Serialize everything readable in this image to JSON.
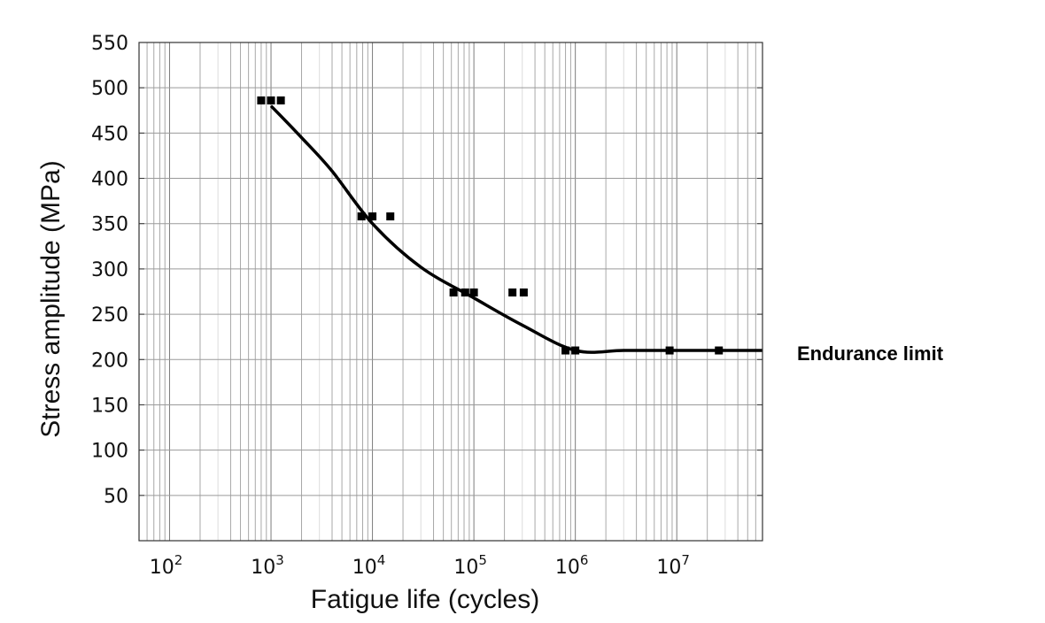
{
  "chart_data": {
    "type": "scatter",
    "title": "",
    "xlabel": "Fatigue life (cycles)",
    "ylabel": "Stress amplitude (MPa)",
    "x_scale": "log",
    "xlim": [
      50,
      70000000
    ],
    "ylim": [
      0,
      550
    ],
    "grid": true,
    "x_ticks": [
      {
        "value": 100,
        "base": "10",
        "exp": "2"
      },
      {
        "value": 1000,
        "base": "10",
        "exp": "3"
      },
      {
        "value": 10000,
        "base": "10",
        "exp": "4"
      },
      {
        "value": 100000,
        "base": "10",
        "exp": "5"
      },
      {
        "value": 1000000,
        "base": "10",
        "exp": "6"
      },
      {
        "value": 10000000,
        "base": "10",
        "exp": "7"
      }
    ],
    "y_ticks": [
      50,
      100,
      150,
      200,
      250,
      300,
      350,
      400,
      450,
      500,
      550
    ],
    "series": [
      {
        "type": "scatter",
        "color": "#000000",
        "points": [
          {
            "x": 800,
            "y": 486
          },
          {
            "x": 1000,
            "y": 486
          },
          {
            "x": 1250,
            "y": 486
          },
          {
            "x": 7800,
            "y": 358
          },
          {
            "x": 10000,
            "y": 358
          },
          {
            "x": 15000,
            "y": 358
          },
          {
            "x": 63000,
            "y": 274
          },
          {
            "x": 82000,
            "y": 274
          },
          {
            "x": 100000,
            "y": 274
          },
          {
            "x": 240000,
            "y": 274
          },
          {
            "x": 310000,
            "y": 274
          },
          {
            "x": 800000,
            "y": 210
          },
          {
            "x": 1000000,
            "y": 210
          },
          {
            "x": 8500000,
            "y": 210
          },
          {
            "x": 26000000,
            "y": 210
          }
        ]
      },
      {
        "type": "line",
        "color": "#000000",
        "points": [
          {
            "x": 1000,
            "y": 480
          },
          {
            "x": 2000,
            "y": 445
          },
          {
            "x": 4000,
            "y": 408
          },
          {
            "x": 10000,
            "y": 350
          },
          {
            "x": 30000,
            "y": 302
          },
          {
            "x": 100000,
            "y": 268
          },
          {
            "x": 300000,
            "y": 238
          },
          {
            "x": 1000000,
            "y": 210
          },
          {
            "x": 3000000,
            "y": 210
          },
          {
            "x": 10000000,
            "y": 210
          },
          {
            "x": 70000000,
            "y": 210
          }
        ]
      }
    ],
    "annotations": [
      {
        "text": "Endurance limit",
        "x": 70000000,
        "y": 210
      }
    ]
  }
}
